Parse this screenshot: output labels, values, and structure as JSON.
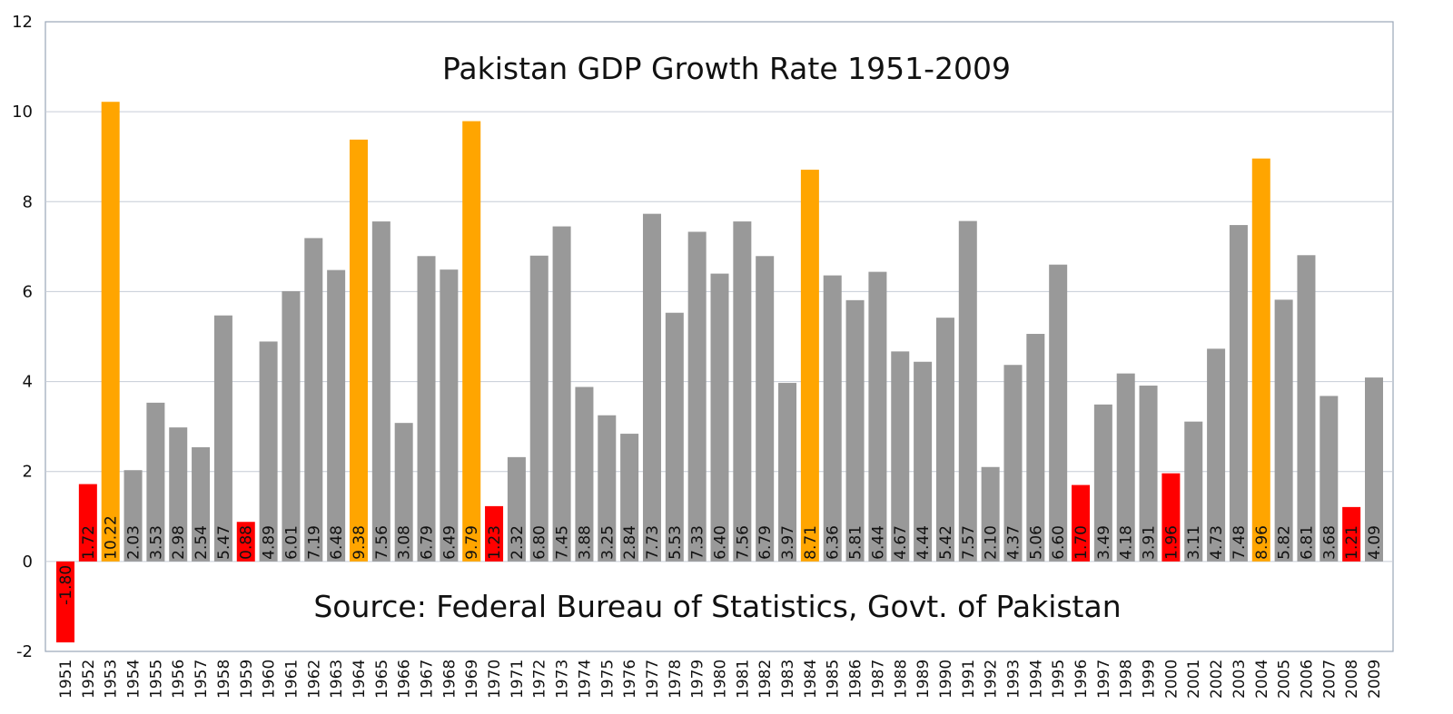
{
  "chart_data": {
    "type": "bar",
    "title": "Pakistan GDP Growth Rate 1951-2009",
    "annotation": "Source: Federal Bureau of Statistics, Govt. of Pakistan",
    "xlabel": "",
    "ylabel": "",
    "ylim": [
      -2,
      12
    ],
    "yticks": [
      12,
      10,
      8,
      6,
      4,
      2,
      0,
      -2
    ],
    "grid": true,
    "colors": {
      "normal": "#999999",
      "high": "#ffa500",
      "low": "#ff0000"
    },
    "categories": [
      "1951",
      "1952",
      "1953",
      "1954",
      "1955",
      "1956",
      "1957",
      "1958",
      "1959",
      "1960",
      "1961",
      "1962",
      "1963",
      "1964",
      "1965",
      "1966",
      "1967",
      "1968",
      "1969",
      "1970",
      "1971",
      "1972",
      "1973",
      "1974",
      "1975",
      "1976",
      "1977",
      "1978",
      "1979",
      "1980",
      "1981",
      "1982",
      "1983",
      "1984",
      "1985",
      "1986",
      "1987",
      "1988",
      "1989",
      "1990",
      "1991",
      "1992",
      "1993",
      "1994",
      "1995",
      "1996",
      "1997",
      "1998",
      "1999",
      "2000",
      "2001",
      "2002",
      "2003",
      "2004",
      "2005",
      "2006",
      "2007",
      "2008",
      "2009"
    ],
    "values": [
      -1.8,
      1.72,
      10.22,
      2.03,
      3.53,
      2.98,
      2.54,
      5.47,
      0.88,
      4.89,
      6.01,
      7.19,
      6.48,
      9.38,
      7.56,
      3.08,
      6.79,
      6.49,
      9.79,
      1.23,
      2.32,
      6.8,
      7.45,
      3.88,
      3.25,
      2.84,
      7.73,
      5.53,
      7.33,
      6.4,
      7.56,
      6.79,
      3.97,
      8.71,
      6.36,
      5.81,
      6.44,
      4.67,
      4.44,
      5.42,
      7.57,
      2.1,
      4.37,
      5.06,
      6.6,
      1.7,
      3.49,
      4.18,
      3.91,
      1.96,
      3.11,
      4.73,
      7.48,
      8.96,
      5.82,
      6.81,
      3.68,
      1.21,
      4.09
    ],
    "labels": [
      "-1.80",
      "1.72",
      "10.22",
      "2.03",
      "3.53",
      "2.98",
      "2.54",
      "5.47",
      "0.88",
      "4.89",
      "6.01",
      "7.19",
      "6.48",
      "9.38",
      "7.56",
      "3.08",
      "6.79",
      "6.49",
      "9.79",
      "1.23",
      "2.32",
      "6.80",
      "7.45",
      "3.88",
      "3.25",
      "2.84",
      "7.73",
      "5.53",
      "7.33",
      "6.40",
      "7.56",
      "6.79",
      "3.97",
      "8.71",
      "6.36",
      "5.81",
      "6.44",
      "4.67",
      "4.44",
      "5.42",
      "7.57",
      "2.10",
      "4.37",
      "5.06",
      "6.60",
      "1.70",
      "3.49",
      "4.18",
      "3.91",
      "1.96",
      "3.11",
      "4.73",
      "7.48",
      "8.96",
      "5.82",
      "6.81",
      "3.68",
      "1.21",
      "4.09"
    ],
    "highlight": [
      "low",
      "low",
      "high",
      "normal",
      "normal",
      "normal",
      "normal",
      "normal",
      "low",
      "normal",
      "normal",
      "normal",
      "normal",
      "high",
      "normal",
      "normal",
      "normal",
      "normal",
      "high",
      "low",
      "normal",
      "normal",
      "normal",
      "normal",
      "normal",
      "normal",
      "normal",
      "normal",
      "normal",
      "normal",
      "normal",
      "normal",
      "normal",
      "high",
      "normal",
      "normal",
      "normal",
      "normal",
      "normal",
      "normal",
      "normal",
      "normal",
      "normal",
      "normal",
      "normal",
      "low",
      "normal",
      "normal",
      "normal",
      "low",
      "normal",
      "normal",
      "normal",
      "high",
      "normal",
      "normal",
      "normal",
      "low",
      "normal"
    ]
  }
}
